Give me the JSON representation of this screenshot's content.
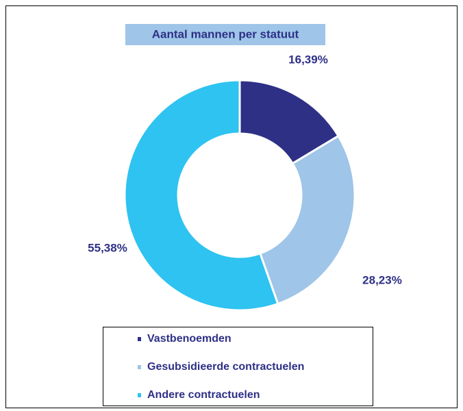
{
  "chart_data": {
    "type": "donut",
    "title": "Aantal mannen per statuut",
    "categories": [
      "Vastbenoemden",
      "Gesubsidieerde contractuelen",
      "Andere contractuelen"
    ],
    "values": [
      16.39,
      28.23,
      55.38
    ],
    "value_labels": [
      "16,39%",
      "28,23%",
      "55,38%"
    ],
    "colors": [
      "#2e3086",
      "#9fc5e8",
      "#2ec3f0"
    ],
    "legend": "bottom"
  }
}
